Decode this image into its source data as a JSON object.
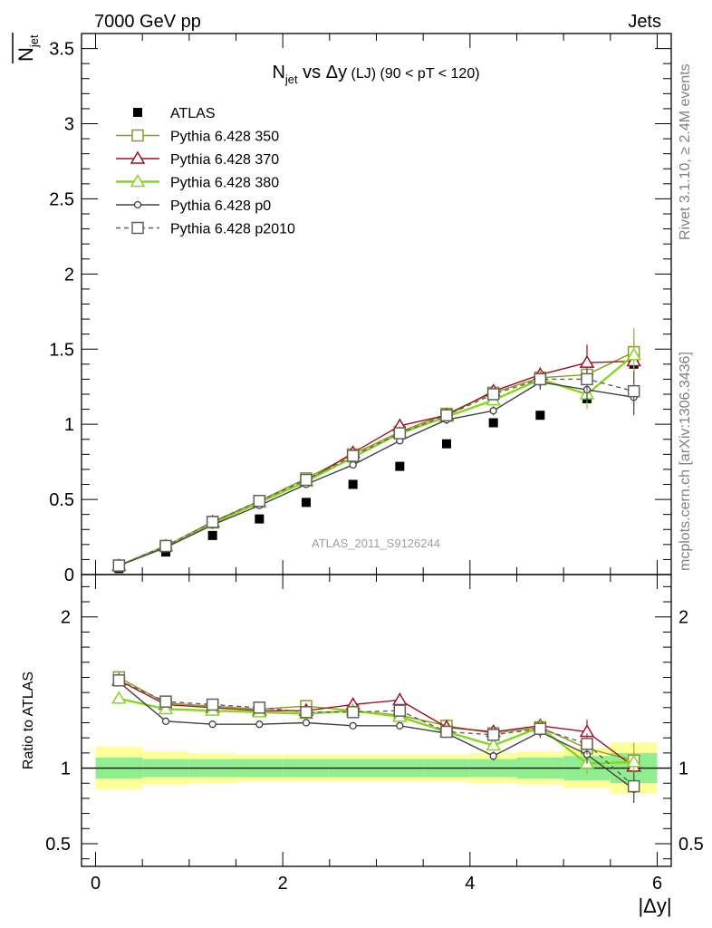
{
  "header": {
    "left": "7000 GeV pp",
    "right": "Jets"
  },
  "side_labels": {
    "rivet": "Rivet 3.1.10, ≥ 2.4M events",
    "mcplots": "mcplots.cern.ch [arXiv:1306.3436]"
  },
  "watermark": "ATLAS_2011_S9126244",
  "colors": {
    "atlas": "#000000",
    "p350": "#8e9a1a",
    "p370": "#a0102a",
    "p380": "#86d61c",
    "p0": "#404040",
    "p2010": "#606060",
    "band_inner": "#90ee90",
    "band_outer": "#ffff99"
  },
  "chart_data": [
    {
      "type": "scatter",
      "title": "N_jet vs Δy (LJ) (90 < pT < 120)",
      "title_parts": {
        "main": "N",
        "sub": "jet",
        "rest": " vs Δy",
        "small": " (LJ)",
        "cut": " (90 < pT < 120)"
      },
      "ylabel": "N",
      "ylabel_sub": "jet",
      "xlim": [
        -0.15,
        6.15
      ],
      "ylim": [
        0,
        3.6
      ],
      "x_ticks": [
        0,
        2,
        4,
        6
      ],
      "y_ticks": [
        {
          "v": 0,
          "label": "0"
        },
        {
          "v": 0.5,
          "label": "0.5"
        },
        {
          "v": 1,
          "label": "1"
        },
        {
          "v": 1.5,
          "label": "1.5"
        },
        {
          "v": 2,
          "label": "2"
        },
        {
          "v": 2.5,
          "label": "2.5"
        },
        {
          "v": 3,
          "label": "3"
        },
        {
          "v": 3.5,
          "label": "3.5"
        }
      ],
      "legend_position": "top-left",
      "x": [
        0.25,
        0.75,
        1.25,
        1.75,
        2.25,
        2.75,
        3.25,
        3.75,
        4.25,
        4.75,
        5.25,
        5.75
      ],
      "series": [
        {
          "name": "ATLAS",
          "key": "atlas",
          "marker": "filled-square",
          "line": "none",
          "values": [
            0.04,
            0.15,
            0.26,
            0.37,
            0.48,
            0.6,
            0.72,
            0.87,
            1.01,
            1.06,
            1.17,
            1.4
          ]
        },
        {
          "name": "Pythia 6.428 350",
          "key": "p350",
          "marker": "open-square",
          "line": "solid",
          "values": [
            0.06,
            0.19,
            0.35,
            0.49,
            0.64,
            0.8,
            0.95,
            1.07,
            1.21,
            1.31,
            1.33,
            1.48
          ],
          "err": [
            0.01,
            0.01,
            0.01,
            0.01,
            0.01,
            0.02,
            0.02,
            0.03,
            0.03,
            0.05,
            0.08,
            0.15
          ]
        },
        {
          "name": "Pythia 6.428 370",
          "key": "p370",
          "marker": "open-triangle",
          "line": "solid",
          "values": [
            0.06,
            0.19,
            0.35,
            0.48,
            0.62,
            0.81,
            0.99,
            1.06,
            1.22,
            1.33,
            1.41,
            1.42
          ],
          "err": [
            0.01,
            0.01,
            0.01,
            0.01,
            0.01,
            0.02,
            0.02,
            0.03,
            0.03,
            0.05,
            0.12,
            0.14
          ]
        },
        {
          "name": "Pythia 6.428 380",
          "key": "p380",
          "marker": "open-triangle",
          "line": "solid",
          "values": [
            0.06,
            0.19,
            0.34,
            0.48,
            0.62,
            0.78,
            0.94,
            1.05,
            1.16,
            1.3,
            1.2,
            1.46
          ],
          "err": [
            0.01,
            0.01,
            0.01,
            0.01,
            0.01,
            0.02,
            0.02,
            0.03,
            0.03,
            0.05,
            0.1,
            0.18
          ]
        },
        {
          "name": "Pythia 6.428 p0",
          "key": "p0",
          "marker": "open-circle",
          "line": "solid",
          "values": [
            0.06,
            0.18,
            0.33,
            0.46,
            0.6,
            0.73,
            0.89,
            1.03,
            1.09,
            1.28,
            1.23,
            1.18
          ],
          "err": [
            0.01,
            0.01,
            0.01,
            0.01,
            0.01,
            0.02,
            0.02,
            0.03,
            0.03,
            0.05,
            0.08,
            0.12
          ]
        },
        {
          "name": "Pythia 6.428 p2010",
          "key": "p2010",
          "marker": "open-square",
          "line": "dashed",
          "values": [
            0.06,
            0.19,
            0.35,
            0.49,
            0.63,
            0.79,
            0.94,
            1.06,
            1.2,
            1.3,
            1.3,
            1.22
          ],
          "err": [
            0.01,
            0.01,
            0.01,
            0.01,
            0.01,
            0.02,
            0.02,
            0.03,
            0.03,
            0.05,
            0.08,
            0.13
          ]
        }
      ]
    },
    {
      "type": "line",
      "ylabel": "Ratio to ATLAS",
      "xlabel": "|Δy|",
      "xlim": [
        -0.15,
        6.15
      ],
      "ylim": [
        0.35,
        2.28
      ],
      "x_ticks": [
        0,
        2,
        4,
        6
      ],
      "y_ticks": [
        {
          "v": 0.5,
          "label": "0.5"
        },
        {
          "v": 1,
          "label": "1"
        },
        {
          "v": 2,
          "label": "2"
        }
      ],
      "x": [
        0.25,
        0.75,
        1.25,
        1.75,
        2.25,
        2.75,
        3.25,
        3.75,
        4.25,
        4.75,
        5.25,
        5.75
      ],
      "band_edges": [
        0,
        0.5,
        1,
        1.5,
        2,
        2.5,
        3,
        3.5,
        4,
        4.5,
        5,
        5.5,
        6
      ],
      "band_inner": [
        0.07,
        0.06,
        0.06,
        0.06,
        0.06,
        0.06,
        0.06,
        0.06,
        0.06,
        0.07,
        0.08,
        0.1
      ],
      "band_outer": [
        0.14,
        0.11,
        0.1,
        0.09,
        0.09,
        0.09,
        0.09,
        0.09,
        0.1,
        0.11,
        0.13,
        0.17
      ],
      "series": [
        {
          "name": "Pythia 6.428 350",
          "key": "p350",
          "marker": "open-square",
          "line": "solid",
          "values": [
            1.6,
            1.43,
            1.41,
            1.39,
            1.41,
            1.38,
            1.35,
            1.28,
            1.23,
            1.27,
            1.13,
            1.05
          ],
          "err": [
            0.03,
            0.02,
            0.02,
            0.02,
            0.02,
            0.02,
            0.02,
            0.03,
            0.03,
            0.04,
            0.06,
            0.11
          ]
        },
        {
          "name": "Pythia 6.428 370",
          "key": "p370",
          "marker": "open-triangle",
          "line": "solid",
          "values": [
            1.58,
            1.42,
            1.4,
            1.38,
            1.38,
            1.42,
            1.45,
            1.27,
            1.24,
            1.28,
            1.24,
            1.01
          ],
          "err": [
            0.03,
            0.02,
            0.02,
            0.02,
            0.02,
            0.02,
            0.02,
            0.03,
            0.03,
            0.04,
            0.08,
            0.1
          ]
        },
        {
          "name": "Pythia 6.428 380",
          "key": "p380",
          "marker": "open-triangle",
          "line": "solid",
          "values": [
            1.46,
            1.39,
            1.38,
            1.37,
            1.36,
            1.38,
            1.34,
            1.24,
            1.15,
            1.27,
            1.03,
            1.04
          ],
          "err": [
            0.03,
            0.02,
            0.02,
            0.02,
            0.02,
            0.02,
            0.02,
            0.03,
            0.03,
            0.04,
            0.07,
            0.13
          ]
        },
        {
          "name": "Pythia 6.428 p0",
          "key": "p0",
          "marker": "open-circle",
          "line": "solid",
          "values": [
            1.57,
            1.31,
            1.29,
            1.29,
            1.3,
            1.28,
            1.28,
            1.23,
            1.08,
            1.24,
            1.09,
            0.86
          ],
          "err": [
            0.03,
            0.02,
            0.02,
            0.02,
            0.02,
            0.02,
            0.02,
            0.03,
            0.03,
            0.04,
            0.06,
            0.09
          ]
        },
        {
          "name": "Pythia 6.428 p2010",
          "key": "p2010",
          "marker": "open-square",
          "line": "dashed",
          "values": [
            1.58,
            1.44,
            1.42,
            1.4,
            1.37,
            1.37,
            1.38,
            1.24,
            1.22,
            1.26,
            1.16,
            0.88
          ],
          "err": [
            0.03,
            0.02,
            0.02,
            0.02,
            0.02,
            0.02,
            0.02,
            0.03,
            0.03,
            0.04,
            0.07,
            0.1
          ]
        }
      ]
    }
  ]
}
